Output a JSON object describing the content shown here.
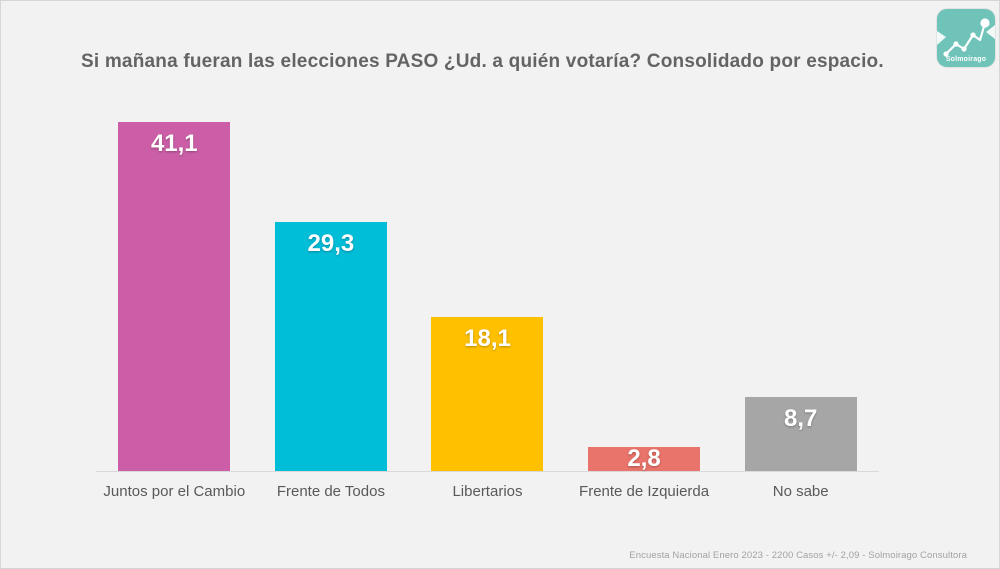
{
  "header": {
    "title": "Si mañana fueran las elecciones PASO ¿Ud. a quién votaría? Consolidado por espacio.",
    "logo": {
      "brand": "Solmoirago",
      "background_color": "#70c3b8"
    }
  },
  "chart_data": {
    "type": "bar",
    "title": "Si mañana fueran las elecciones PASO ¿Ud. a quién votaría? Consolidado por espacio.",
    "categories": [
      "Juntos por el Cambio",
      "Frente de Todos",
      "Libertarios",
      "Frente de Izquierda",
      "No sabe"
    ],
    "values": [
      41.1,
      29.3,
      18.1,
      2.8,
      8.7
    ],
    "value_labels": [
      "41,1",
      "29,3",
      "18,1",
      "2,8",
      "8,7"
    ],
    "colors": [
      "#cb5ea6",
      "#00bdd8",
      "#ffc000",
      "#e8746b",
      "#a6a6a6"
    ],
    "xlabel": "",
    "ylabel": "",
    "ylim": [
      0,
      43.6
    ],
    "grid": false,
    "legend": false,
    "value_label_color": "#ffffff",
    "axis_line_color": "#d9d9d9"
  },
  "footer": {
    "note": "Encuesta Nacional Enero 2023 - 2200 Casos +/- 2,09  - Solmoirago Consultora"
  }
}
